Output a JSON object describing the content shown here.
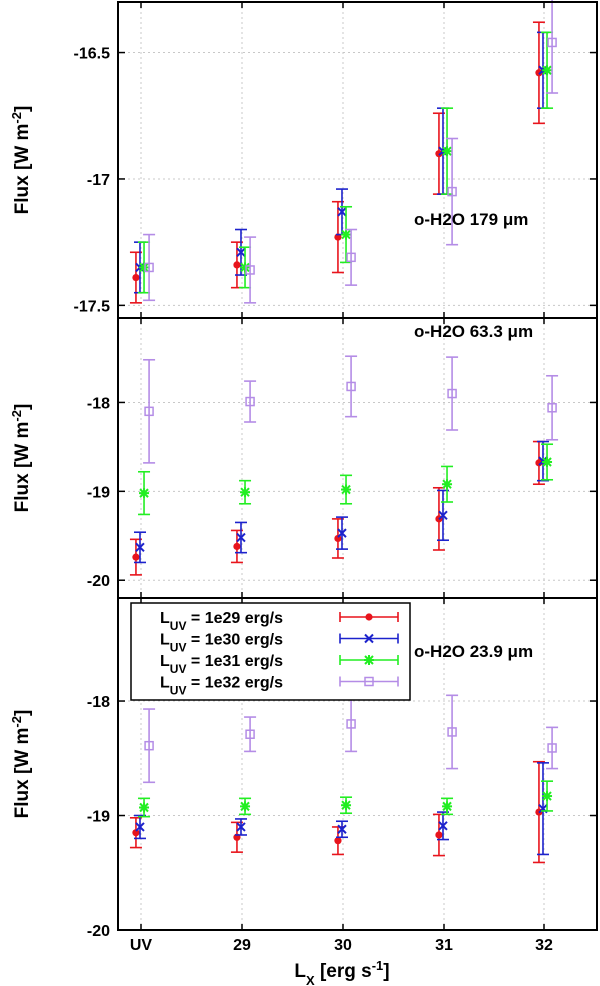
{
  "chart_data": {
    "type": "scatter",
    "x_categories": [
      "UV",
      "29",
      "30",
      "31",
      "32"
    ],
    "xlabel_main": "L",
    "xlabel_sub": "X",
    "xlabel_rest": " [erg s",
    "xlabel_sup": "-1",
    "xlabel_end": "]",
    "series": [
      {
        "name": "1e29 erg/s",
        "legend_prefix": "L",
        "legend_sub": "UV",
        "legend_rest": " = 1e29 erg/s",
        "color": "#e8141c",
        "marker": "circle",
        "offset": -0.05
      },
      {
        "name": "1e30 erg/s",
        "legend_prefix": "L",
        "legend_sub": "UV",
        "legend_rest": " = 1e30 erg/s",
        "color": "#1c22cc",
        "marker": "cross",
        "offset": -0.01
      },
      {
        "name": "1e31 erg/s",
        "legend_prefix": "L",
        "legend_sub": "UV",
        "legend_rest": " = 1e31 erg/s",
        "color": "#22ee22",
        "marker": "star",
        "offset": 0.03
      },
      {
        "name": "1e32 erg/s",
        "legend_prefix": "L",
        "legend_sub": "UV",
        "legend_rest": " = 1e32 erg/s",
        "color": "#b48ce6",
        "marker": "square",
        "offset": 0.08
      }
    ],
    "panels": [
      {
        "title": "o-H2O 179 ",
        "title_unit": "μm",
        "ylabel_main": "Flux [W m",
        "ylabel_sup": "-2",
        "ylabel_end": "]",
        "ylim": [
          -17.55,
          -16.3
        ],
        "yticks": [
          -17.5,
          -17,
          -16.5
        ],
        "ytick_labels": [
          "-17.5",
          "-17",
          "-16.5"
        ],
        "values": [
          [
            [
              -17.39,
              0.1
            ],
            [
              -17.34,
              0.09
            ],
            [
              -17.23,
              0.14
            ],
            [
              -16.9,
              0.16
            ],
            [
              -16.58,
              0.2
            ]
          ],
          [
            [
              -17.35,
              0.1
            ],
            [
              -17.29,
              0.09
            ],
            [
              -17.13,
              0.09
            ],
            [
              -16.89,
              0.17
            ],
            [
              -16.57,
              0.15
            ]
          ],
          [
            [
              -17.35,
              0.1
            ],
            [
              -17.35,
              0.08
            ],
            [
              -17.22,
              0.11
            ],
            [
              -16.89,
              0.17
            ],
            [
              -16.57,
              0.15
            ]
          ],
          [
            [
              -17.35,
              0.13
            ],
            [
              -17.36,
              0.13
            ],
            [
              -17.31,
              0.11
            ],
            [
              -17.05,
              0.21
            ],
            [
              -16.46,
              0.2
            ]
          ]
        ]
      },
      {
        "title": "o-H2O 63.3 ",
        "title_unit": "μm",
        "ylabel_main": "Flux [W m",
        "ylabel_sup": "-2",
        "ylabel_end": "]",
        "ylim": [
          -20.2,
          -17.05
        ],
        "yticks": [
          -20,
          -19,
          -18
        ],
        "ytick_labels": [
          "-20",
          "-19",
          "-18"
        ],
        "values": [
          [
            [
              -19.74,
              0.2
            ],
            [
              -19.62,
              0.18
            ],
            [
              -19.53,
              0.22
            ],
            [
              -19.31,
              0.35
            ],
            [
              -18.68,
              0.24
            ]
          ],
          [
            [
              -19.63,
              0.17
            ],
            [
              -19.52,
              0.17
            ],
            [
              -19.47,
              0.18
            ],
            [
              -19.27,
              0.28
            ],
            [
              -18.66,
              0.22
            ]
          ],
          [
            [
              -19.02,
              0.24
            ],
            [
              -19.01,
              0.13
            ],
            [
              -18.98,
              0.16
            ],
            [
              -18.92,
              0.2
            ],
            [
              -18.67,
              0.2
            ]
          ],
          [
            [
              -18.1,
              0.58
            ],
            [
              -17.99,
              0.23
            ],
            [
              -17.82,
              0.34
            ],
            [
              -17.9,
              0.41
            ],
            [
              -18.06,
              0.36
            ]
          ]
        ]
      },
      {
        "title": "o-H2O 23.9 ",
        "title_unit": "μm",
        "ylabel_main": "Flux [W m",
        "ylabel_sup": "-2",
        "ylabel_end": "]",
        "ylim": [
          -20.0,
          -17.1
        ],
        "yticks": [
          -20,
          -19,
          -18
        ],
        "ytick_labels": [
          "-20",
          "-19",
          "-18"
        ],
        "values": [
          [
            [
              -19.15,
              0.13
            ],
            [
              -19.19,
              0.13
            ],
            [
              -19.22,
              0.12
            ],
            [
              -19.17,
              0.18
            ],
            [
              -18.97,
              0.44
            ]
          ],
          [
            [
              -19.1,
              0.1
            ],
            [
              -19.1,
              0.07
            ],
            [
              -19.12,
              0.07
            ],
            [
              -19.09,
              0.12
            ],
            [
              -18.94,
              0.4
            ]
          ],
          [
            [
              -18.93,
              0.08
            ],
            [
              -18.92,
              0.07
            ],
            [
              -18.91,
              0.07
            ],
            [
              -18.92,
              0.07
            ],
            [
              -18.83,
              0.13
            ]
          ],
          [
            [
              -18.39,
              0.32
            ],
            [
              -18.29,
              0.15
            ],
            [
              -18.2,
              0.24
            ],
            [
              -18.27,
              0.32
            ],
            [
              -18.41,
              0.18
            ]
          ]
        ]
      }
    ],
    "legend_position": "top-left of bottom panel",
    "grid": true
  }
}
